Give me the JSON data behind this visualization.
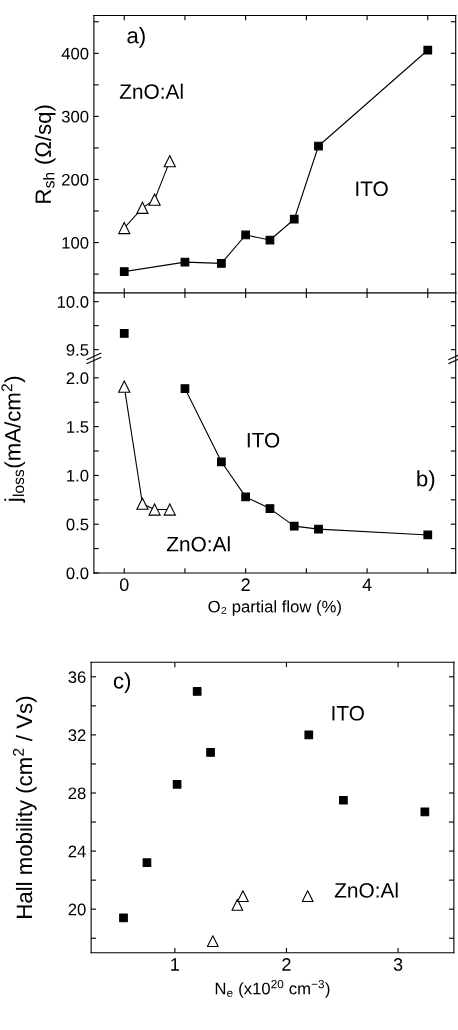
{
  "chart_data": [
    {
      "type": "line",
      "ylabel": "R$_{sh}$ (Ω/sq)",
      "annotations": [
        "a)"
      ],
      "line_style": "solid",
      "tick_labels": "y",
      "xlim": [
        -0.5,
        5.46
      ],
      "ylim": [
        20,
        460
      ],
      "xticks": [
        0,
        {
          "value": 1,
          "label": null
        },
        2,
        {
          "value": 3,
          "label": null
        },
        4,
        {
          "value": 5,
          "label": null
        }
      ],
      "yticks": [
        {
          "value": 50,
          "label": null
        },
        100,
        {
          "value": 150,
          "label": null
        },
        200,
        {
          "value": 250,
          "label": null
        },
        300,
        {
          "value": 350,
          "label": null
        },
        400,
        {
          "value": 450,
          "label": null
        }
      ],
      "series": [
        {
          "name": "ITO",
          "color": "#000000",
          "marker": "square",
          "x": [
            0,
            1,
            1.6,
            2,
            2.4,
            2.8,
            3.2,
            5
          ],
          "values": [
            54,
            69,
            67,
            112,
            104,
            137,
            253,
            405
          ]
        },
        {
          "name": "ZnO:Al",
          "color": "#000000",
          "marker": "triangle",
          "x": [
            0,
            0.3,
            0.5,
            0.75
          ],
          "values": [
            123,
            155,
            168,
            229
          ]
        }
      ]
    },
    {
      "type": "line",
      "line_style": "solid",
      "tick_labels": "y",
      "xlim": [
        -0.5,
        5.46
      ],
      "ylim": [
        9.43,
        10.09
      ],
      "xticks": [
        0,
        {
          "value": 1,
          "label": null
        },
        2,
        {
          "value": 3,
          "label": null
        },
        4,
        {
          "value": 5,
          "label": null
        }
      ],
      "yticks": [
        {
          "value": 9.5,
          "label": "9.5"
        },
        {
          "value": 9.75,
          "label": null
        },
        {
          "value": 10.0,
          "label": "10.0"
        }
      ],
      "series": [
        {
          "color": "#000000",
          "marker": "square",
          "x": [
            0
          ],
          "values": [
            9.67
          ]
        }
      ]
    },
    {
      "type": "line",
      "xlabel": "O₂ partial flow (%)",
      "ylabel": "j$_{loss}$(mA/cm$^{2}$)",
      "annotations": [
        "b)"
      ],
      "line_style": "solid",
      "xlim": [
        -0.5,
        5.46
      ],
      "ylim": [
        0,
        2.22
      ],
      "xticks": [
        0,
        {
          "value": 1,
          "label": null
        },
        2,
        {
          "value": 3,
          "label": null
        },
        4,
        {
          "value": 5,
          "label": null
        }
      ],
      "yticks": [
        {
          "value": 0,
          "label": "0.0"
        },
        {
          "value": 0.25,
          "label": null
        },
        {
          "value": 0.5,
          "label": "0.5"
        },
        {
          "value": 0.75,
          "label": null
        },
        {
          "value": 1.0,
          "label": "1.0"
        },
        {
          "value": 1.25,
          "label": null
        },
        {
          "value": 1.5,
          "label": "1.5"
        },
        {
          "value": 1.75,
          "label": null
        },
        {
          "value": 2.0,
          "label": "2.0"
        }
      ],
      "series": [
        {
          "name": "ITO",
          "color": "#000000",
          "marker": "square",
          "x": [
            1,
            1.6,
            2,
            2.4,
            2.8,
            3.2,
            5
          ],
          "values": [
            1.89,
            1.14,
            0.78,
            0.66,
            0.48,
            0.45,
            0.39
          ]
        },
        {
          "name": "ZnO:Al",
          "color": "#000000",
          "marker": "triangle",
          "x": [
            0,
            0.3,
            0.5,
            0.75
          ],
          "values": [
            1.91,
            0.71,
            0.65,
            0.65
          ]
        }
      ]
    },
    {
      "type": "scatter",
      "xlabel": "N$_{e}$ (x10$^{20}$ cm$^{−3}$)",
      "ylabel": "Hall mobility (cm$^{2}$ / Vs)",
      "annotations": [
        "c)"
      ],
      "xlim": [
        0.25,
        3.5
      ],
      "ylim": [
        17,
        37
      ],
      "xticks": [
        1,
        2,
        3
      ],
      "yticks": [
        {
          "value": 18,
          "label": null
        },
        20,
        {
          "value": 22,
          "label": null
        },
        24,
        {
          "value": 26,
          "label": null
        },
        28,
        {
          "value": 30,
          "label": null
        },
        32,
        {
          "value": 34,
          "label": null
        },
        36
      ],
      "series": [
        {
          "name": "ITO",
          "color": "#000000",
          "marker": "square",
          "x": [
            0.54,
            0.75,
            1.02,
            1.2,
            1.32,
            2.2,
            2.51,
            3.24
          ],
          "values": [
            19.4,
            23.2,
            28.6,
            35.0,
            30.8,
            32.0,
            27.5,
            26.7
          ]
        },
        {
          "name": "ZnO:Al",
          "color": "#000000",
          "marker": "triangle",
          "x": [
            1.34,
            1.56,
            1.61,
            2.19
          ],
          "values": [
            17.8,
            20.3,
            20.9,
            20.9
          ]
        }
      ]
    }
  ]
}
